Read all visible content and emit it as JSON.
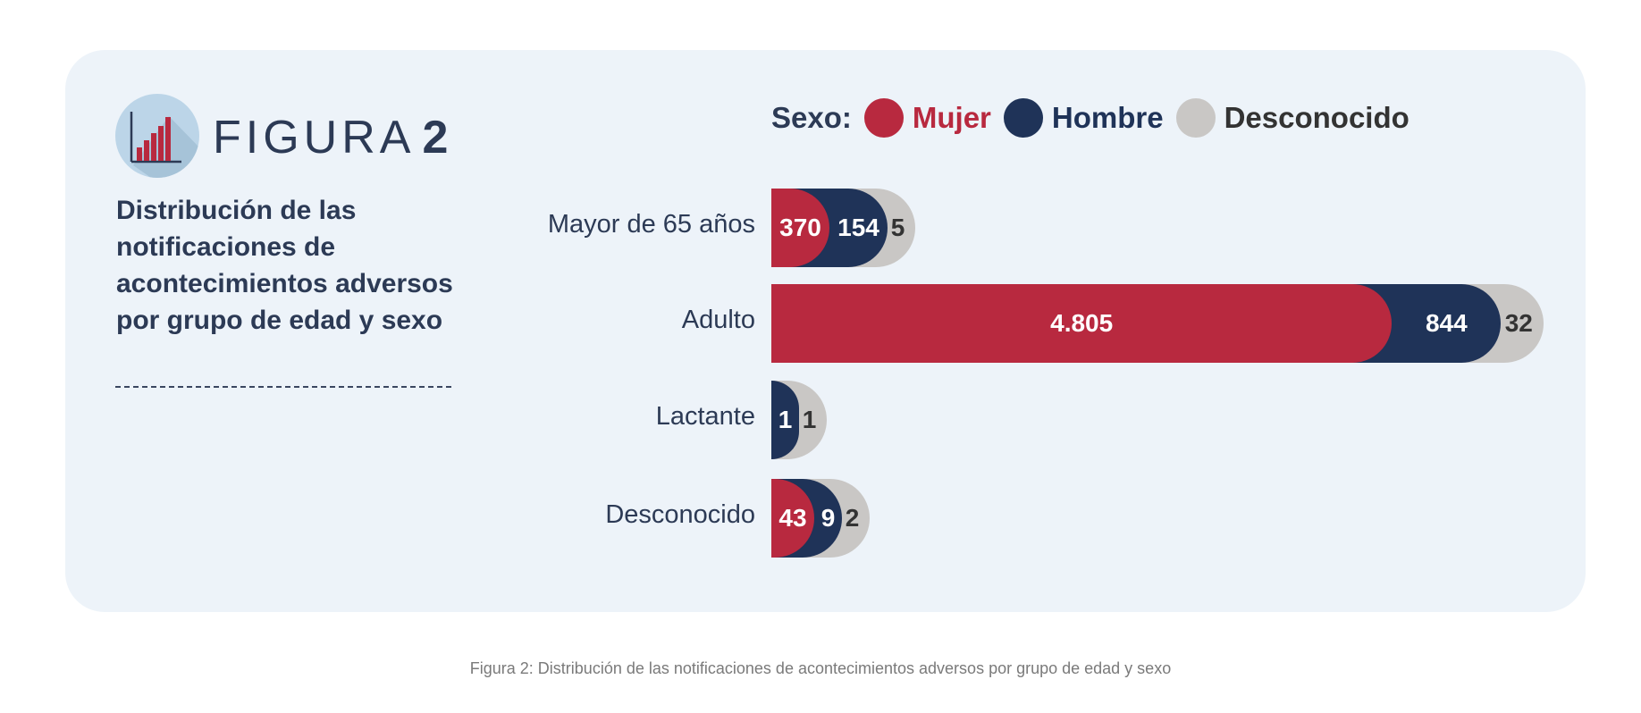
{
  "figure": {
    "label": "FIGURA",
    "number": "2",
    "title": "Distribución de las notificaciones de acontecimientos adversos por grupo de edad y sexo"
  },
  "caption": "Figura 2: Distribución de las notificaciones de acontecimientos adversos por grupo de edad y sexo",
  "chart_data": {
    "type": "bar",
    "orientation": "horizontal",
    "stacked": true,
    "title": "Distribución de las notificaciones de acontecimientos adversos por grupo de edad y sexo",
    "legend_title": "Sexo:",
    "legend_position": "top",
    "categories": [
      "Mayor de 65 años",
      "Adulto",
      "Lactante",
      "Desconocido"
    ],
    "series": [
      {
        "name": "Mujer",
        "color": "#b8293f",
        "values": [
          370,
          4805,
          0,
          43
        ],
        "labels": [
          "370",
          "4.805",
          "",
          "43"
        ]
      },
      {
        "name": "Hombre",
        "color": "#1f3358",
        "values": [
          154,
          844,
          1,
          9
        ],
        "labels": [
          "154",
          "844",
          "1",
          "9"
        ]
      },
      {
        "name": "Desconocido",
        "color": "#c9c7c5",
        "values": [
          5,
          32,
          1,
          2
        ],
        "labels": [
          "5",
          "32",
          "1",
          "2"
        ]
      }
    ],
    "grid": false
  }
}
